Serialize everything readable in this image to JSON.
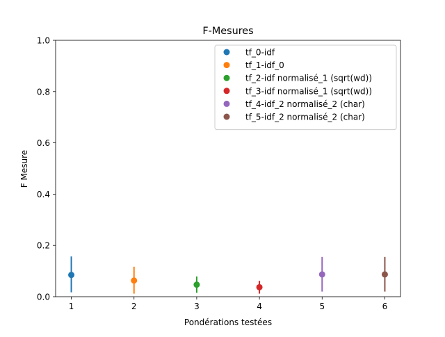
{
  "chart_data": {
    "type": "scatter",
    "title": "F-Mesures",
    "xlabel": "Pondérations testées",
    "ylabel": "F Mesure",
    "xlim": [
      0.75,
      6.25
    ],
    "ylim": [
      0.0,
      1.0
    ],
    "xticks": [
      "1",
      "2",
      "3",
      "4",
      "5",
      "6"
    ],
    "yticks": [
      "0.0",
      "0.2",
      "0.4",
      "0.6",
      "0.8",
      "1.0"
    ],
    "grid": false,
    "legend_position": "top-right",
    "series": [
      {
        "name": "tf_0-idf",
        "color": "#1f77b4",
        "x": 1,
        "y": 0.085,
        "err_low": 0.017,
        "err_high": 0.157
      },
      {
        "name": "tf_1-idf_0",
        "color": "#ff7f0e",
        "x": 2,
        "y": 0.063,
        "err_low": 0.012,
        "err_high": 0.117
      },
      {
        "name": "tf_2-idf normalisé_1 (sqrt(wd))",
        "color": "#2ca02c",
        "x": 3,
        "y": 0.047,
        "err_low": 0.015,
        "err_high": 0.079
      },
      {
        "name": "tf_3-idf normalisé_1 (sqrt(wd))",
        "color": "#d62728",
        "x": 4,
        "y": 0.037,
        "err_low": 0.012,
        "err_high": 0.062
      },
      {
        "name": "tf_4-idf_2 normalisé_2 (char)",
        "color": "#9467bd",
        "x": 5,
        "y": 0.087,
        "err_low": 0.02,
        "err_high": 0.155
      },
      {
        "name": "tf_5-idf_2 normalisé_2 (char)",
        "color": "#8c564b",
        "x": 6,
        "y": 0.087,
        "err_low": 0.02,
        "err_high": 0.155
      }
    ]
  }
}
